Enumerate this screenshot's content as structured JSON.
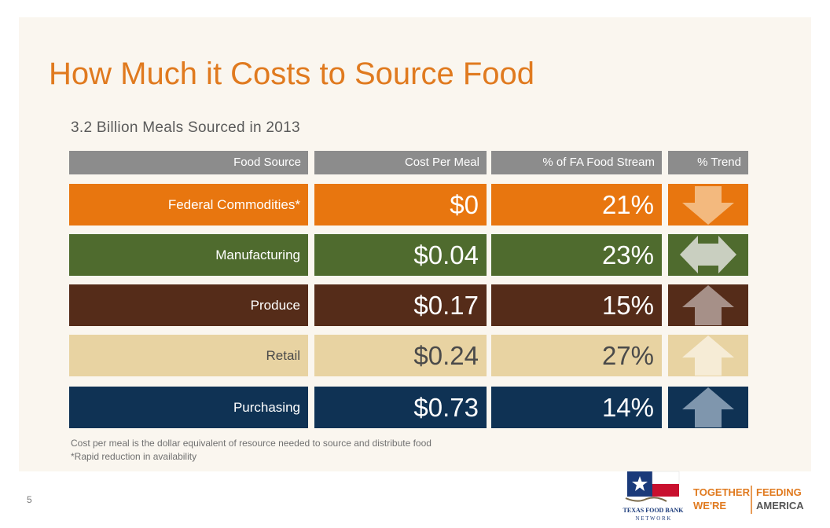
{
  "title": "How Much it Costs to Source Food",
  "subtitle": "3.2 Billion Meals Sourced in 2013",
  "headers": {
    "source": "Food Source",
    "cost": "Cost Per Meal",
    "pct": "% of FA Food Stream",
    "trend": "% Trend"
  },
  "rows": [
    {
      "source": "Federal Commodities*",
      "cost": "$0",
      "pct": "21%",
      "trend": "down-arrow-icon",
      "bg": "#e8760f",
      "fg": "#ffffff",
      "arrow": "#f3b97e"
    },
    {
      "source": "Manufacturing",
      "cost": "$0.04",
      "pct": "23%",
      "trend": "left-right-arrow-icon",
      "bg": "#4f6b2e",
      "fg": "#ffffff",
      "arrow": "#c9cfc0"
    },
    {
      "source": "Produce",
      "cost": "$0.17",
      "pct": "15%",
      "trend": "up-arrow-icon",
      "bg": "#552c19",
      "fg": "#ffffff",
      "arrow": "#a69088"
    },
    {
      "source": "Retail",
      "cost": "$0.24",
      "pct": "27%",
      "trend": "up-arrow-icon",
      "bg": "#e8d3a2",
      "fg": "#4a4a4a",
      "arrow": "#f6ecd6"
    },
    {
      "source": "Purchasing",
      "cost": "$0.73",
      "pct": "14%",
      "trend": "up-arrow-icon",
      "bg": "#0f3254",
      "fg": "#ffffff",
      "arrow": "#7f96ad"
    }
  ],
  "notes": {
    "line1": "Cost per meal is the dollar equivalent of resource needed to source and distribute food",
    "line2": "*Rapid reduction in availability"
  },
  "page_number": "5",
  "logos": {
    "tfb_line1": "TEXAS FOOD BANK",
    "tfb_line2": "N E T W O R K",
    "fa_together": "TOGETHER",
    "fa_were": "WE'RE",
    "fa_feeding": "FEEDING",
    "fa_america": "AMERICA"
  }
}
